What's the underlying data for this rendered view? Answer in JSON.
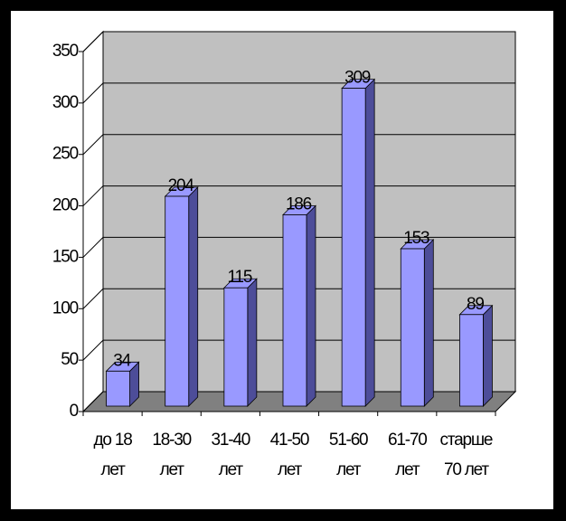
{
  "chart_data": {
    "type": "bar3d",
    "categories": [
      "до 18 лет",
      "18-30 лет",
      "31-40 лет",
      "41-50 лет",
      "51-60 лет",
      "61-70 лет",
      "старше 70 лет"
    ],
    "values": [
      34,
      204,
      115,
      186,
      309,
      153,
      89
    ],
    "color": "#9999ff",
    "ylim": [
      0,
      350
    ],
    "yticks": [
      0,
      50,
      100,
      150,
      200,
      250,
      300,
      350
    ],
    "grid": true
  }
}
